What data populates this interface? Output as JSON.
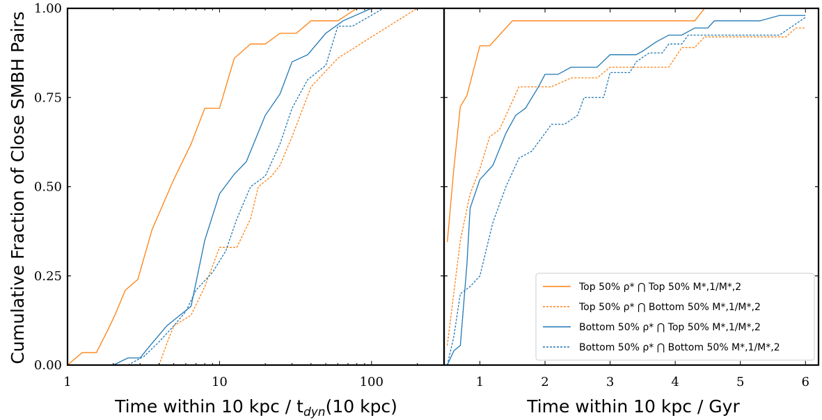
{
  "colors": {
    "orange": "#ff7f0e",
    "blue": "#1f77b4"
  },
  "chart_data": [
    {
      "type": "line",
      "panel": "left",
      "xscale": "log",
      "xlim": [
        1,
        300
      ],
      "ylim": [
        0,
        1
      ],
      "xticks": [
        "1",
        "10",
        "100"
      ],
      "yticks": [
        "0.00",
        "0.25",
        "0.50",
        "0.75",
        "1.00"
      ],
      "ylabel": "Cumulative Fraction of Close SMBH Pairs",
      "xlabel": {
        "main": "Time within 10 kpc / t",
        "sub": "dyn",
        "tail": "(10 kpc)"
      },
      "series": [
        {
          "name": "Top 50% ρ* ⋂ Top 50% M*,1/M*,2",
          "color": "orange",
          "style": "solid",
          "points": [
            [
              1.0,
              0.0
            ],
            [
              1.25,
              0.035
            ],
            [
              1.55,
              0.035
            ],
            [
              1.85,
              0.1
            ],
            [
              2.05,
              0.14
            ],
            [
              2.4,
              0.21
            ],
            [
              2.9,
              0.24
            ],
            [
              3.6,
              0.38
            ],
            [
              5.0,
              0.52
            ],
            [
              6.5,
              0.62
            ],
            [
              8.0,
              0.72
            ],
            [
              10.0,
              0.72
            ],
            [
              12.5,
              0.86
            ],
            [
              16.0,
              0.9
            ],
            [
              20.0,
              0.9
            ],
            [
              25.0,
              0.93
            ],
            [
              32.0,
              0.93
            ],
            [
              40.0,
              0.965
            ],
            [
              60.0,
              0.965
            ],
            [
              80.0,
              1.0
            ],
            [
              300.0,
              1.0
            ]
          ]
        },
        {
          "name": "Top 50% ρ* ⋂ Bottom 50% M*,1/M*,2",
          "color": "orange",
          "style": "dotted",
          "points": [
            [
              4.0,
              0.0
            ],
            [
              4.5,
              0.06
            ],
            [
              5.0,
              0.11
            ],
            [
              6.5,
              0.14
            ],
            [
              8.0,
              0.22
            ],
            [
              10.0,
              0.33
            ],
            [
              12.0,
              0.33
            ],
            [
              13.0,
              0.33
            ],
            [
              16.0,
              0.41
            ],
            [
              18.0,
              0.5
            ],
            [
              22.0,
              0.53
            ],
            [
              25.0,
              0.56
            ],
            [
              30.0,
              0.64
            ],
            [
              40.0,
              0.78
            ],
            [
              60.0,
              0.86
            ],
            [
              100.0,
              0.92
            ],
            [
              200.0,
              1.0
            ],
            [
              300.0,
              1.0
            ]
          ]
        },
        {
          "name": "Bottom 50% ρ* ⋂ Top 50% M*,1/M*,2",
          "color": "blue",
          "style": "solid",
          "points": [
            [
              2.0,
              0.0
            ],
            [
              2.5,
              0.02
            ],
            [
              3.0,
              0.02
            ],
            [
              3.5,
              0.055
            ],
            [
              4.5,
              0.11
            ],
            [
              6.5,
              0.165
            ],
            [
              8.0,
              0.35
            ],
            [
              10.0,
              0.48
            ],
            [
              12.5,
              0.535
            ],
            [
              15.0,
              0.57
            ],
            [
              20.0,
              0.7
            ],
            [
              25.0,
              0.76
            ],
            [
              30.0,
              0.85
            ],
            [
              38.0,
              0.87
            ],
            [
              50.0,
              0.93
            ],
            [
              65.0,
              0.965
            ],
            [
              100.0,
              1.0
            ],
            [
              300.0,
              1.0
            ]
          ]
        },
        {
          "name": "Bottom 50% ρ* ⋂ Bottom 50% M*,1/M*,2",
          "color": "blue",
          "style": "dotted",
          "points": [
            [
              2.5,
              0.0
            ],
            [
              3.2,
              0.025
            ],
            [
              4.0,
              0.065
            ],
            [
              5.0,
              0.11
            ],
            [
              6.0,
              0.15
            ],
            [
              7.0,
              0.21
            ],
            [
              9.0,
              0.26
            ],
            [
              11.0,
              0.32
            ],
            [
              13.0,
              0.41
            ],
            [
              16.0,
              0.5
            ],
            [
              20.0,
              0.53
            ],
            [
              25.0,
              0.62
            ],
            [
              30.0,
              0.72
            ],
            [
              38.0,
              0.8
            ],
            [
              50.0,
              0.84
            ],
            [
              60.0,
              0.95
            ],
            [
              75.0,
              0.95
            ],
            [
              120.0,
              1.0
            ],
            [
              300.0,
              1.0
            ]
          ]
        }
      ]
    },
    {
      "type": "line",
      "panel": "right",
      "xscale": "linear",
      "xlim": [
        0.45,
        6.2
      ],
      "ylim": [
        0,
        1
      ],
      "xticks": [
        "1",
        "2",
        "3",
        "4",
        "5",
        "6"
      ],
      "xlabel": "Time within 10 kpc / Gyr",
      "legend": "bottom-right",
      "series": [
        {
          "name": "Top 50% ρ* ⋂ Top 50% M*,1/M*,2",
          "color": "orange",
          "style": "solid",
          "points": [
            [
              0.5,
              0.345
            ],
            [
              0.6,
              0.55
            ],
            [
              0.7,
              0.725
            ],
            [
              0.8,
              0.755
            ],
            [
              1.0,
              0.895
            ],
            [
              1.15,
              0.895
            ],
            [
              1.5,
              0.965
            ],
            [
              2.0,
              0.965
            ],
            [
              4.3,
              0.965
            ],
            [
              4.45,
              1.0
            ],
            [
              6.0,
              1.0
            ]
          ]
        },
        {
          "name": "Top 50% ρ* ⋂ Bottom 50% M*,1/M*,2",
          "color": "orange",
          "style": "dotted",
          "points": [
            [
              0.5,
              0.055
            ],
            [
              0.7,
              0.35
            ],
            [
              0.85,
              0.48
            ],
            [
              1.0,
              0.55
            ],
            [
              1.15,
              0.64
            ],
            [
              1.3,
              0.66
            ],
            [
              1.45,
              0.72
            ],
            [
              1.6,
              0.78
            ],
            [
              2.0,
              0.78
            ],
            [
              2.1,
              0.78
            ],
            [
              2.4,
              0.805
            ],
            [
              2.8,
              0.805
            ],
            [
              3.0,
              0.835
            ],
            [
              3.9,
              0.835
            ],
            [
              4.1,
              0.89
            ],
            [
              4.3,
              0.89
            ],
            [
              4.45,
              0.92
            ],
            [
              5.7,
              0.92
            ],
            [
              5.85,
              0.945
            ],
            [
              6.0,
              0.945
            ]
          ]
        },
        {
          "name": "Bottom 50% ρ* ⋂ Top 50% M*,1/M*,2",
          "color": "blue",
          "style": "solid",
          "points": [
            [
              0.5,
              0.0
            ],
            [
              0.6,
              0.04
            ],
            [
              0.7,
              0.055
            ],
            [
              0.8,
              0.28
            ],
            [
              0.85,
              0.44
            ],
            [
              1.0,
              0.52
            ],
            [
              1.2,
              0.56
            ],
            [
              1.4,
              0.65
            ],
            [
              1.55,
              0.7
            ],
            [
              1.7,
              0.72
            ],
            [
              1.9,
              0.78
            ],
            [
              2.0,
              0.815
            ],
            [
              2.2,
              0.815
            ],
            [
              2.4,
              0.835
            ],
            [
              2.8,
              0.835
            ],
            [
              3.0,
              0.87
            ],
            [
              3.4,
              0.87
            ],
            [
              3.5,
              0.88
            ],
            [
              3.7,
              0.905
            ],
            [
              3.9,
              0.925
            ],
            [
              4.1,
              0.925
            ],
            [
              4.3,
              0.945
            ],
            [
              4.5,
              0.945
            ],
            [
              4.6,
              0.965
            ],
            [
              5.3,
              0.965
            ],
            [
              5.6,
              0.98
            ],
            [
              6.0,
              0.98
            ]
          ]
        },
        {
          "name": "Bottom 50% ρ* ⋂ Bottom 50% M*,1/M*,2",
          "color": "blue",
          "style": "dotted",
          "points": [
            [
              0.5,
              0.0
            ],
            [
              0.6,
              0.08
            ],
            [
              0.7,
              0.2
            ],
            [
              0.85,
              0.22
            ],
            [
              1.0,
              0.25
            ],
            [
              1.2,
              0.4
            ],
            [
              1.4,
              0.5
            ],
            [
              1.6,
              0.58
            ],
            [
              1.8,
              0.6
            ],
            [
              2.0,
              0.65
            ],
            [
              2.1,
              0.675
            ],
            [
              2.3,
              0.675
            ],
            [
              2.5,
              0.7
            ],
            [
              2.6,
              0.75
            ],
            [
              2.9,
              0.75
            ],
            [
              3.0,
              0.82
            ],
            [
              3.3,
              0.82
            ],
            [
              3.4,
              0.85
            ],
            [
              3.6,
              0.875
            ],
            [
              3.8,
              0.875
            ],
            [
              3.9,
              0.9
            ],
            [
              4.1,
              0.9
            ],
            [
              4.2,
              0.925
            ],
            [
              5.6,
              0.925
            ],
            [
              6.0,
              0.975
            ]
          ]
        }
      ]
    }
  ]
}
